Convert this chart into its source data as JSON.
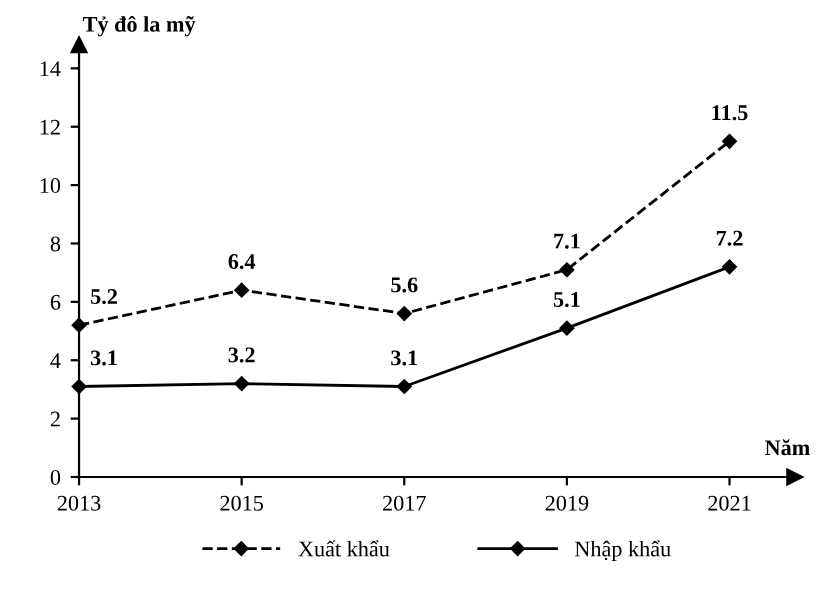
{
  "chart_data": {
    "type": "line",
    "ylabel": "Tỷ đô la mỹ",
    "xlabel": "Năm",
    "x": [
      2013,
      2015,
      2017,
      2019,
      2021
    ],
    "xlim": [
      2013,
      2021.8
    ],
    "xticks": [
      2013,
      2015,
      2017,
      2019,
      2021
    ],
    "ylim": [
      0,
      14.8
    ],
    "yticks": [
      0,
      2,
      4,
      6,
      8,
      10,
      12,
      14
    ],
    "series": [
      {
        "name": "Xuất khẩu",
        "color": "#000000",
        "values": [
          5.2,
          6.4,
          5.6,
          7.1,
          11.5
        ],
        "line_style": "dashed"
      },
      {
        "name": "Nhập khẩu",
        "color": "#000000",
        "values": [
          3.1,
          3.2,
          3.1,
          5.1,
          7.2
        ],
        "line_style": "solid"
      }
    ],
    "marker": "diamond",
    "data_labels": true,
    "grid": false,
    "legend": "bottom"
  }
}
